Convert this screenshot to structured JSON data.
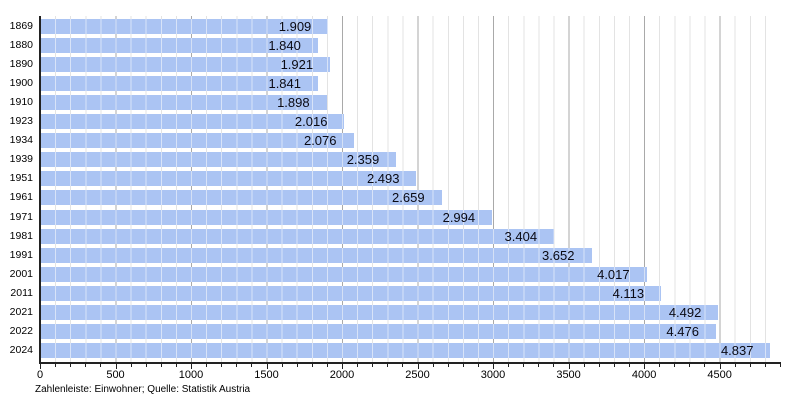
{
  "chart_data": {
    "type": "bar",
    "orientation": "horizontal",
    "title": "",
    "xlabel": "",
    "ylabel": "",
    "caption": "Zahlenleiste: Einwohner; Quelle: Statistik Austria",
    "categories": [
      "1869",
      "1880",
      "1890",
      "1900",
      "1910",
      "1923",
      "1934",
      "1939",
      "1951",
      "1961",
      "1971",
      "1981",
      "1991",
      "2001",
      "2011",
      "2021",
      "2022",
      "2024"
    ],
    "values": [
      1909,
      1840,
      1921,
      1841,
      1898,
      2016,
      2076,
      2359,
      2493,
      2659,
      2994,
      3404,
      3652,
      4017,
      4113,
      4492,
      4476,
      4837
    ],
    "value_labels": [
      "1.909",
      "1.840",
      "1.921",
      "1.841",
      "1.898",
      "2.016",
      "2.076",
      "2.359",
      "2.493",
      "2.659",
      "2.994",
      "3.404",
      "3.652",
      "4.017",
      "4.113",
      "4.492",
      "4.476",
      "4.837"
    ],
    "x_axis": {
      "min": 0,
      "max": 4900,
      "major_tick_step": 500,
      "minor_tick_step": 100,
      "major_tick_labels": [
        "0",
        "500",
        "1000",
        "1500",
        "2000",
        "2500",
        "3000",
        "3500",
        "4000",
        "4500"
      ]
    },
    "grid": {
      "minor_color": "#e3e3e3",
      "major_color": "#a9a9a9"
    },
    "colors": {
      "bar_fill": "#9fbcf1",
      "bar_overlay_dash": "#ffffff",
      "axis": "#222222",
      "text": "#000000"
    },
    "legend": null
  }
}
